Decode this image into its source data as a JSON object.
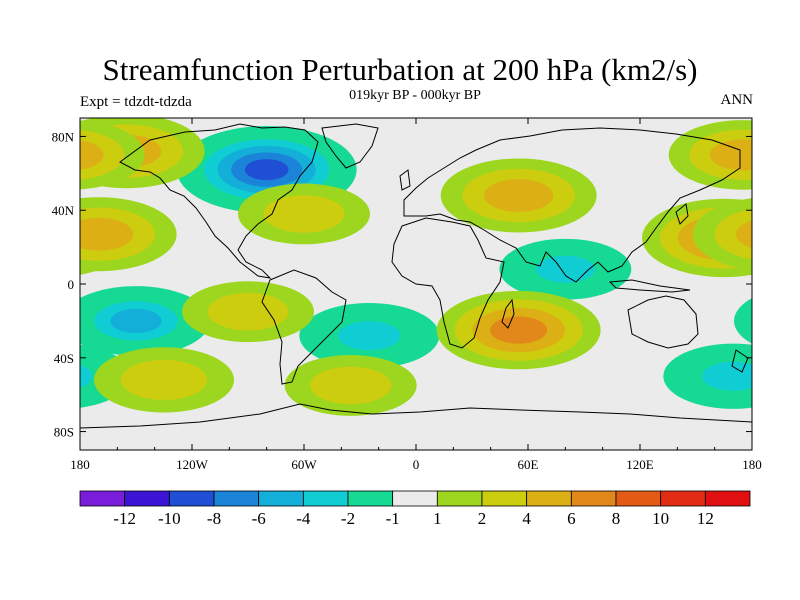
{
  "chart_data": {
    "type": "heatmap",
    "title": "Streamfunction Perturbation at 200 hPa (km2/s)",
    "subtitle": "019kyr BP - 000kyr BP",
    "left_label": "Expt = tdzdt-tdzda",
    "right_label": "ANN",
    "x_tick_labels": [
      "180",
      "120W",
      "60W",
      "0",
      "60E",
      "120E",
      "180"
    ],
    "x_tick_values": [
      -180,
      -120,
      -60,
      0,
      60,
      120,
      180
    ],
    "y_tick_labels": [
      "80N",
      "40N",
      "0",
      "40S",
      "80S"
    ],
    "y_tick_values": [
      80,
      40,
      0,
      -40,
      -80
    ],
    "xlim": [
      -180,
      180
    ],
    "ylim": [
      -90,
      90
    ],
    "colorbar": {
      "labels": [
        "-12",
        "-10",
        "-8",
        "-6",
        "-4",
        "-2",
        "-1",
        "1",
        "2",
        "4",
        "6",
        "8",
        "10",
        "12"
      ],
      "colors": [
        "#7a1ddb",
        "#3c14d6",
        "#1e4fd4",
        "#1b84d8",
        "#13afd9",
        "#10cdd4",
        "#16d994",
        "#ebebeb",
        "#9cd61e",
        "#cdcd10",
        "#dcb014",
        "#e2881a",
        "#e25a14",
        "#e22d14",
        "#e01010"
      ]
    },
    "anomalies": [
      {
        "lon": -80,
        "lat": 62,
        "value": -8
      },
      {
        "lon": -150,
        "lat": -20,
        "value": -4
      },
      {
        "lon": -25,
        "lat": -28,
        "value": -3
      },
      {
        "lon": 170,
        "lat": -50,
        "value": -3
      },
      {
        "lon": 80,
        "lat": 8,
        "value": -2
      },
      {
        "lon": 55,
        "lat": 48,
        "value": 5
      },
      {
        "lon": 165,
        "lat": 25,
        "value": 6
      },
      {
        "lon": -170,
        "lat": 27,
        "value": 5
      },
      {
        "lon": -155,
        "lat": 72,
        "value": 5
      },
      {
        "lon": 175,
        "lat": 70,
        "value": 4
      },
      {
        "lon": -135,
        "lat": -52,
        "value": 3
      },
      {
        "lon": 55,
        "lat": -25,
        "value": 6
      },
      {
        "lon": -60,
        "lat": 38,
        "value": 2
      },
      {
        "lon": -90,
        "lat": -15,
        "value": 2
      },
      {
        "lon": -35,
        "lat": -55,
        "value": 2
      }
    ]
  }
}
